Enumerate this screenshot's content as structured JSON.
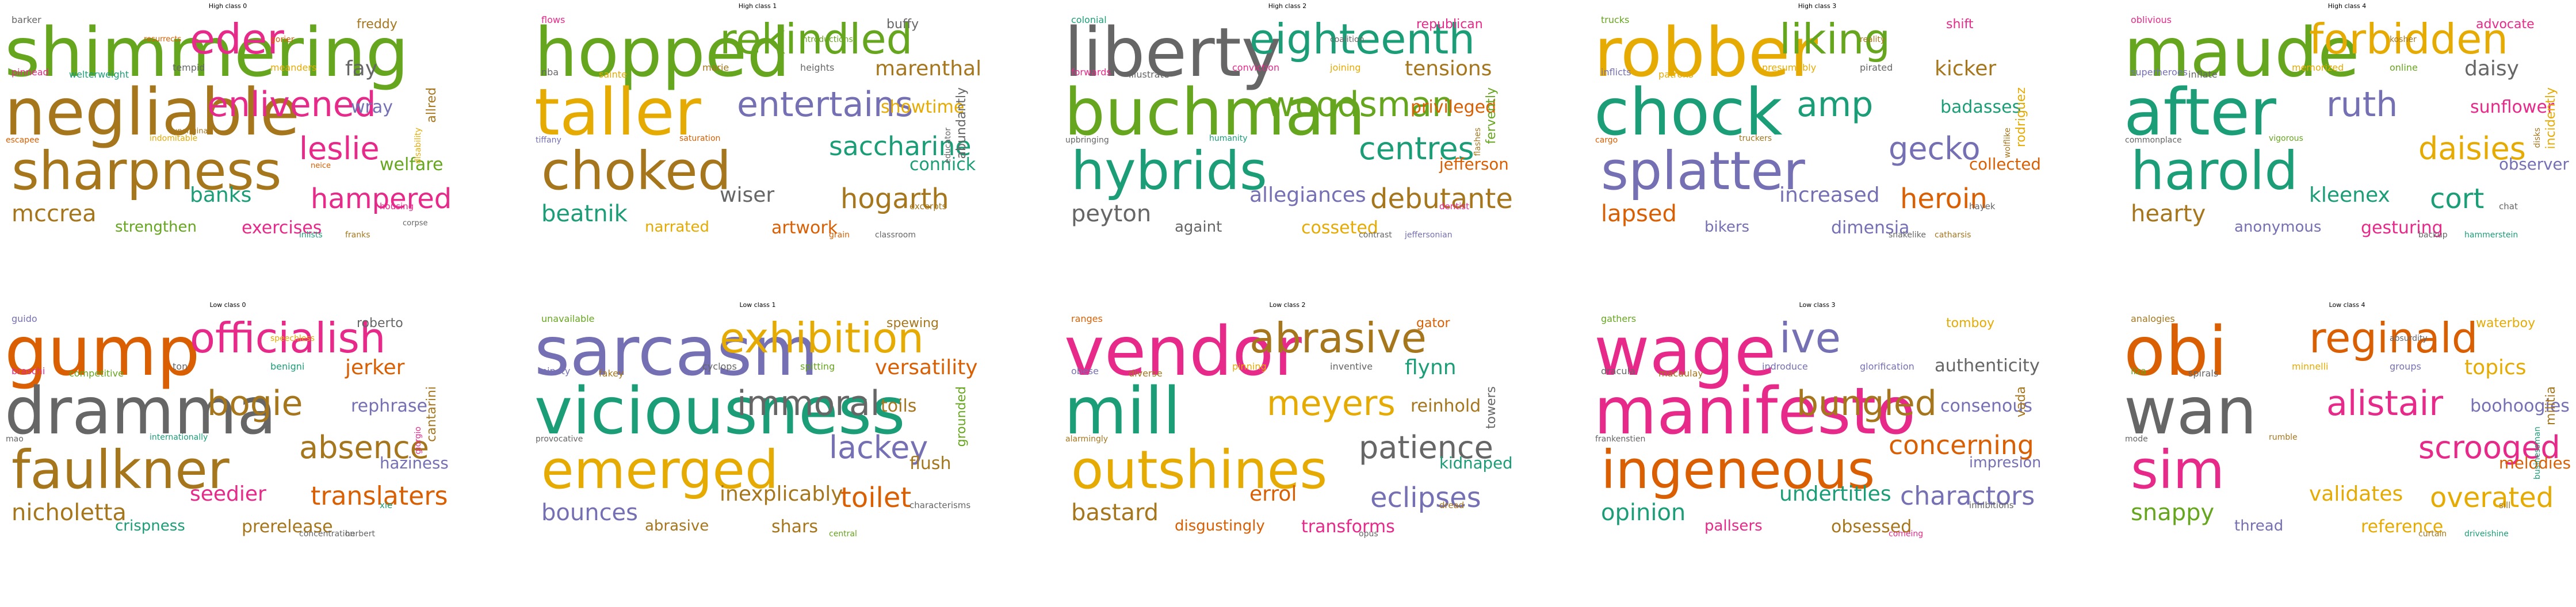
{
  "colors": [
    "#1b9e77",
    "#d95f02",
    "#7570b3",
    "#e7298a",
    "#66a61e",
    "#e6ab02",
    "#a6761d",
    "#666666"
  ],
  "panels": [
    {
      "title": "High class 0",
      "words": [
        {
          "t": "shimmering",
          "c": 4
        },
        {
          "t": "negliable",
          "c": 6
        },
        {
          "t": "sharpness",
          "c": 6
        },
        {
          "t": "eder",
          "c": 3
        },
        {
          "t": "enlivened",
          "c": 3
        },
        {
          "t": "leslie",
          "c": 3
        },
        {
          "t": "hampered",
          "c": 3
        },
        {
          "t": "mccrea",
          "c": 6
        },
        {
          "t": "banks",
          "c": 0
        },
        {
          "t": "fay",
          "c": 7
        },
        {
          "t": "wray",
          "c": 2
        },
        {
          "t": "welfare",
          "c": 4
        },
        {
          "t": "exercises",
          "c": 3
        },
        {
          "t": "strengthen",
          "c": 4
        },
        {
          "t": "barker",
          "c": 7
        },
        {
          "t": "freddy",
          "c": 6
        },
        {
          "t": "allred",
          "c": 6
        },
        {
          "t": "pinnead",
          "c": 3
        },
        {
          "t": "tempid",
          "c": 7
        },
        {
          "t": "welterweight",
          "c": 0
        },
        {
          "t": "meanders",
          "c": 5
        },
        {
          "t": "escapee",
          "c": 1
        },
        {
          "t": "housing",
          "c": 3
        },
        {
          "t": "inlists",
          "c": 0
        },
        {
          "t": "indomitable",
          "c": 5
        },
        {
          "t": "disability",
          "c": 5
        },
        {
          "t": "franks",
          "c": 6
        },
        {
          "t": "gorier",
          "c": 1
        },
        {
          "t": "resurrects",
          "c": 1
        },
        {
          "t": "corpse",
          "c": 7
        },
        {
          "t": "neice",
          "c": 1
        },
        {
          "t": "unoriginal",
          "c": 6
        }
      ]
    },
    {
      "title": "High class 1",
      "words": [
        {
          "t": "hopped",
          "c": 4
        },
        {
          "t": "taller",
          "c": 5
        },
        {
          "t": "choked",
          "c": 6
        },
        {
          "t": "rekindled",
          "c": 4
        },
        {
          "t": "entertains",
          "c": 2
        },
        {
          "t": "saccharine",
          "c": 0
        },
        {
          "t": "hogarth",
          "c": 6
        },
        {
          "t": "beatnik",
          "c": 0
        },
        {
          "t": "wiser",
          "c": 7
        },
        {
          "t": "marenthal",
          "c": 6
        },
        {
          "t": "showtime",
          "c": 5
        },
        {
          "t": "connick",
          "c": 0
        },
        {
          "t": "artwork",
          "c": 1
        },
        {
          "t": "narrated",
          "c": 5
        },
        {
          "t": "flows",
          "c": 3
        },
        {
          "t": "buffy",
          "c": 7
        },
        {
          "t": "abundantly",
          "c": 7
        },
        {
          "t": "nba",
          "c": 7
        },
        {
          "t": "marie",
          "c": 6
        },
        {
          "t": "sainte",
          "c": 5
        },
        {
          "t": "heights",
          "c": 7
        },
        {
          "t": "tiffany",
          "c": 2
        },
        {
          "t": "excerpts",
          "c": 6
        },
        {
          "t": "grain",
          "c": 1
        },
        {
          "t": "saturation",
          "c": 1
        },
        {
          "t": "educator",
          "c": 7
        },
        {
          "t": "classroom",
          "c": 7
        },
        {
          "t": "introductions",
          "c": 4
        }
      ]
    },
    {
      "title": "High class 2",
      "words": [
        {
          "t": "liberty",
          "c": 7
        },
        {
          "t": "buchman",
          "c": 4
        },
        {
          "t": "hybrids",
          "c": 0
        },
        {
          "t": "eighteenth",
          "c": 0
        },
        {
          "t": "woodsman",
          "c": 4
        },
        {
          "t": "centres",
          "c": 0
        },
        {
          "t": "debutante",
          "c": 6
        },
        {
          "t": "peyton",
          "c": 7
        },
        {
          "t": "allegiances",
          "c": 2
        },
        {
          "t": "tensions",
          "c": 6
        },
        {
          "t": "privileged",
          "c": 1
        },
        {
          "t": "jefferson",
          "c": 1
        },
        {
          "t": "cosseted",
          "c": 5
        },
        {
          "t": "againt",
          "c": 7
        },
        {
          "t": "colonial",
          "c": 0
        },
        {
          "t": "republican",
          "c": 3
        },
        {
          "t": "fervently",
          "c": 4
        },
        {
          "t": "forwards",
          "c": 3
        },
        {
          "t": "conviction",
          "c": 3
        },
        {
          "t": "illustrate",
          "c": 7
        },
        {
          "t": "joining",
          "c": 5
        },
        {
          "t": "upbringing",
          "c": 7
        },
        {
          "t": "dentist",
          "c": 3
        },
        {
          "t": "contrast",
          "c": 7
        },
        {
          "t": "humanity",
          "c": 0
        },
        {
          "t": "flashes",
          "c": 6
        },
        {
          "t": "jeffersonian",
          "c": 2
        },
        {
          "t": "coalition",
          "c": 7
        }
      ]
    },
    {
      "title": "High class 3",
      "words": [
        {
          "t": "robber",
          "c": 5
        },
        {
          "t": "chock",
          "c": 0
        },
        {
          "t": "splatter",
          "c": 2
        },
        {
          "t": "liking",
          "c": 4
        },
        {
          "t": "amp",
          "c": 0
        },
        {
          "t": "gecko",
          "c": 2
        },
        {
          "t": "heroin",
          "c": 1
        },
        {
          "t": "lapsed",
          "c": 1
        },
        {
          "t": "increased",
          "c": 2
        },
        {
          "t": "kicker",
          "c": 6
        },
        {
          "t": "badasses",
          "c": 0
        },
        {
          "t": "collected",
          "c": 1
        },
        {
          "t": "dimensia",
          "c": 2
        },
        {
          "t": "bikers",
          "c": 2
        },
        {
          "t": "trucks",
          "c": 4
        },
        {
          "t": "shift",
          "c": 3
        },
        {
          "t": "rodriguez",
          "c": 5
        },
        {
          "t": "inflicts",
          "c": 2
        },
        {
          "t": "presumably",
          "c": 5
        },
        {
          "t": "patrons",
          "c": 5
        },
        {
          "t": "pirated",
          "c": 7
        },
        {
          "t": "cargo",
          "c": 1
        },
        {
          "t": "hayek",
          "c": 7
        },
        {
          "t": "snakelike",
          "c": 7
        },
        {
          "t": "truckers",
          "c": 6
        },
        {
          "t": "wolflike",
          "c": 6
        },
        {
          "t": "catharsis",
          "c": 6
        },
        {
          "t": "reality",
          "c": 6
        }
      ]
    },
    {
      "title": "High class 4",
      "words": [
        {
          "t": "maude",
          "c": 4
        },
        {
          "t": "after",
          "c": 0
        },
        {
          "t": "harold",
          "c": 0
        },
        {
          "t": "forbidden",
          "c": 5
        },
        {
          "t": "ruth",
          "c": 2
        },
        {
          "t": "daisies",
          "c": 5
        },
        {
          "t": "cort",
          "c": 0
        },
        {
          "t": "hearty",
          "c": 6
        },
        {
          "t": "kleenex",
          "c": 0
        },
        {
          "t": "daisy",
          "c": 7
        },
        {
          "t": "sunflower",
          "c": 3
        },
        {
          "t": "observer",
          "c": 2
        },
        {
          "t": "gesturing",
          "c": 3
        },
        {
          "t": "anonymous",
          "c": 2
        },
        {
          "t": "oblivious",
          "c": 3
        },
        {
          "t": "advocate",
          "c": 3
        },
        {
          "t": "incidently",
          "c": 5
        },
        {
          "t": "superheroes",
          "c": 2
        },
        {
          "t": "memorized",
          "c": 5
        },
        {
          "t": "inflate",
          "c": 7
        },
        {
          "t": "online",
          "c": 4
        },
        {
          "t": "commonplace",
          "c": 7
        },
        {
          "t": "chat",
          "c": 7
        },
        {
          "t": "backup",
          "c": 7
        },
        {
          "t": "vigorous",
          "c": 4
        },
        {
          "t": "disks",
          "c": 6
        },
        {
          "t": "hammerstein",
          "c": 0
        },
        {
          "t": "kosher",
          "c": 6
        }
      ]
    },
    {
      "title": "Low class 0",
      "words": [
        {
          "t": "gump",
          "c": 1
        },
        {
          "t": "dramma",
          "c": 7
        },
        {
          "t": "faulkner",
          "c": 6
        },
        {
          "t": "officialish",
          "c": 3
        },
        {
          "t": "bogie",
          "c": 6
        },
        {
          "t": "absence",
          "c": 6
        },
        {
          "t": "translaters",
          "c": 1
        },
        {
          "t": "nicholetta",
          "c": 6
        },
        {
          "t": "seedier",
          "c": 3
        },
        {
          "t": "jerker",
          "c": 1
        },
        {
          "t": "rephrase",
          "c": 2
        },
        {
          "t": "haziness",
          "c": 2
        },
        {
          "t": "prerelease",
          "c": 6
        },
        {
          "t": "crispness",
          "c": 0
        },
        {
          "t": "guido",
          "c": 2
        },
        {
          "t": "roberto",
          "c": 7
        },
        {
          "t": "cantarini",
          "c": 6
        },
        {
          "t": "braschi",
          "c": 3
        },
        {
          "t": "ton",
          "c": 7
        },
        {
          "t": "competitive",
          "c": 4
        },
        {
          "t": "benigni",
          "c": 0
        },
        {
          "t": "mao",
          "c": 7
        },
        {
          "t": "xie",
          "c": 0
        },
        {
          "t": "concentration",
          "c": 7
        },
        {
          "t": "internationally",
          "c": 0
        },
        {
          "t": "giorgio",
          "c": 3
        },
        {
          "t": "herbert",
          "c": 7
        },
        {
          "t": "speechless",
          "c": 5
        }
      ]
    },
    {
      "title": "Low class 1",
      "words": [
        {
          "t": "sarcasm",
          "c": 2
        },
        {
          "t": "viciousness",
          "c": 0
        },
        {
          "t": "emerged",
          "c": 5
        },
        {
          "t": "exhibition",
          "c": 5
        },
        {
          "t": "immoral",
          "c": 7
        },
        {
          "t": "lackey",
          "c": 2
        },
        {
          "t": "toilet",
          "c": 1
        },
        {
          "t": "bounces",
          "c": 2
        },
        {
          "t": "inexplicably",
          "c": 6
        },
        {
          "t": "versatility",
          "c": 1
        },
        {
          "t": "toils",
          "c": 6
        },
        {
          "t": "flush",
          "c": 6
        },
        {
          "t": "shars",
          "c": 6
        },
        {
          "t": "abrasive",
          "c": 6
        },
        {
          "t": "unavailable",
          "c": 4
        },
        {
          "t": "spewing",
          "c": 6
        },
        {
          "t": "grounded",
          "c": 4
        },
        {
          "t": "ninety",
          "c": 2
        },
        {
          "t": "cyclops",
          "c": 7
        },
        {
          "t": "fakey",
          "c": 6
        },
        {
          "t": "spitting",
          "c": 4
        },
        {
          "t": "provocative",
          "c": 7
        },
        {
          "t": "characterisms",
          "c": 7
        },
        {
          "t": "central",
          "c": 4
        }
      ]
    },
    {
      "title": "Low class 2",
      "words": [
        {
          "t": "vendor",
          "c": 3
        },
        {
          "t": "mill",
          "c": 0
        },
        {
          "t": "outshines",
          "c": 5
        },
        {
          "t": "abrasive",
          "c": 6
        },
        {
          "t": "meyers",
          "c": 5
        },
        {
          "t": "patience",
          "c": 7
        },
        {
          "t": "eclipses",
          "c": 2
        },
        {
          "t": "bastard",
          "c": 6
        },
        {
          "t": "errol",
          "c": 1
        },
        {
          "t": "flynn",
          "c": 0
        },
        {
          "t": "reinhold",
          "c": 6
        },
        {
          "t": "kidnaped",
          "c": 0
        },
        {
          "t": "transforms",
          "c": 3
        },
        {
          "t": "disgustingly",
          "c": 1
        },
        {
          "t": "ranges",
          "c": 1
        },
        {
          "t": "gator",
          "c": 1
        },
        {
          "t": "towers",
          "c": 7
        },
        {
          "t": "obese",
          "c": 2
        },
        {
          "t": "pinning",
          "c": 5
        },
        {
          "t": "diverse",
          "c": 6
        },
        {
          "t": "inventive",
          "c": 7
        },
        {
          "t": "alarmingly",
          "c": 6
        },
        {
          "t": "dread",
          "c": 6
        },
        {
          "t": "opus",
          "c": 7
        }
      ]
    },
    {
      "title": "Low class 3",
      "words": [
        {
          "t": "wage",
          "c": 3
        },
        {
          "t": "manifesto",
          "c": 3
        },
        {
          "t": "ingeneous",
          "c": 1
        },
        {
          "t": "ive",
          "c": 2
        },
        {
          "t": "bungled",
          "c": 6
        },
        {
          "t": "concerning",
          "c": 1
        },
        {
          "t": "charactors",
          "c": 2
        },
        {
          "t": "opinion",
          "c": 0
        },
        {
          "t": "undertitles",
          "c": 0
        },
        {
          "t": "authenticity",
          "c": 7
        },
        {
          "t": "consenous",
          "c": 2
        },
        {
          "t": "impresion",
          "c": 2
        },
        {
          "t": "obsessed",
          "c": 6
        },
        {
          "t": "pallsers",
          "c": 3
        },
        {
          "t": "gathers",
          "c": 4
        },
        {
          "t": "tomboy",
          "c": 5
        },
        {
          "t": "vada",
          "c": 6
        },
        {
          "t": "dracula",
          "c": 7
        },
        {
          "t": "indroduce",
          "c": 2
        },
        {
          "t": "macaulay",
          "c": 6
        },
        {
          "t": "glorification",
          "c": 2
        },
        {
          "t": "frankenstien",
          "c": 7
        },
        {
          "t": "inhibitions",
          "c": 7
        },
        {
          "t": "comeing",
          "c": 3
        }
      ]
    },
    {
      "title": "Low class 4",
      "words": [
        {
          "t": "obi",
          "c": 1
        },
        {
          "t": "wan",
          "c": 7
        },
        {
          "t": "sim",
          "c": 3
        },
        {
          "t": "reginald",
          "c": 1
        },
        {
          "t": "alistair",
          "c": 3
        },
        {
          "t": "scrooged",
          "c": 3
        },
        {
          "t": "overated",
          "c": 5
        },
        {
          "t": "snappy",
          "c": 4
        },
        {
          "t": "validates",
          "c": 5
        },
        {
          "t": "topics",
          "c": 5
        },
        {
          "t": "boohoogies",
          "c": 2
        },
        {
          "t": "melodies",
          "c": 1
        },
        {
          "t": "reference",
          "c": 5
        },
        {
          "t": "thread",
          "c": 2
        },
        {
          "t": "analogies",
          "c": 6
        },
        {
          "t": "waterboy",
          "c": 5
        },
        {
          "t": "militia",
          "c": 6
        },
        {
          "t": "liza",
          "c": 4
        },
        {
          "t": "minnelli",
          "c": 5
        },
        {
          "t": "spirals",
          "c": 7
        },
        {
          "t": "groups",
          "c": 2
        },
        {
          "t": "mode",
          "c": 7
        },
        {
          "t": "sill",
          "c": 6
        },
        {
          "t": "curtain",
          "c": 6
        },
        {
          "t": "rumble",
          "c": 6
        },
        {
          "t": "businessman",
          "c": 0
        },
        {
          "t": "driveishine",
          "c": 0
        },
        {
          "t": "absurdity",
          "c": 7
        }
      ]
    }
  ]
}
